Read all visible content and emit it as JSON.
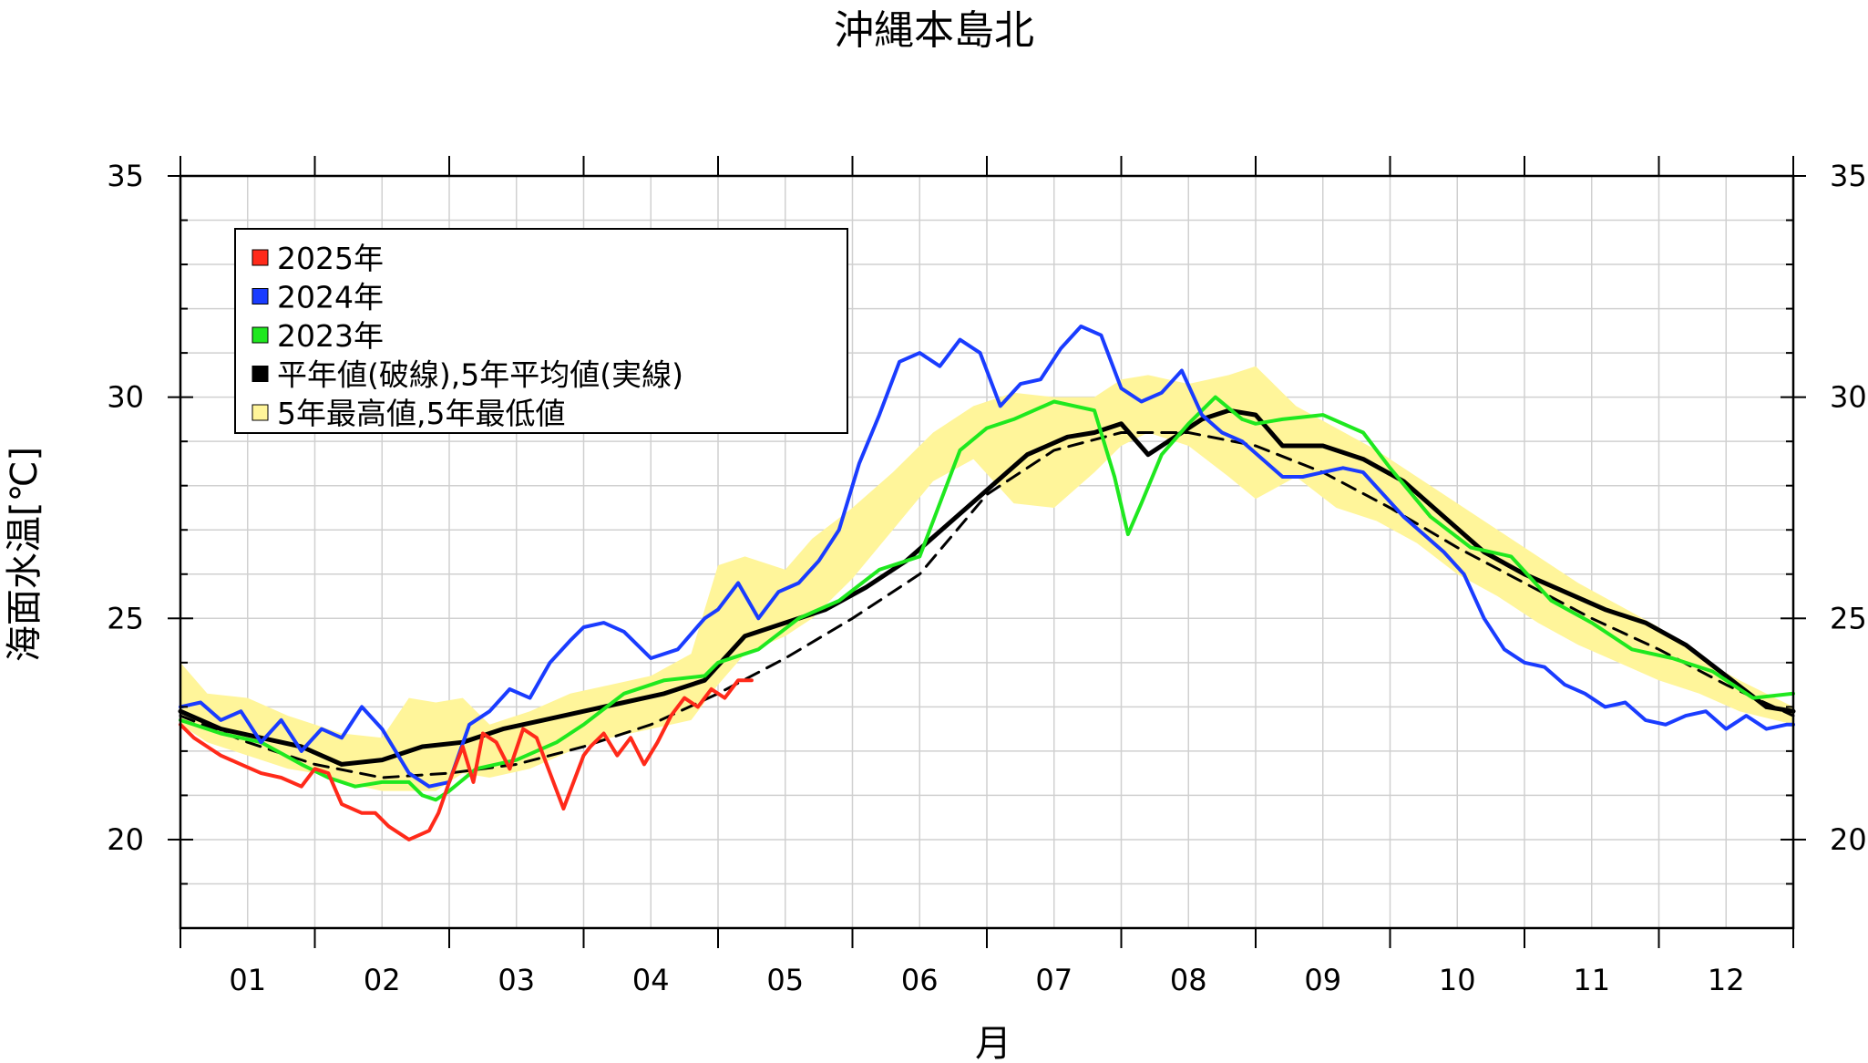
{
  "chart_data": {
    "type": "line",
    "title": "沖縄本島北",
    "xlabel": "月",
    "ylabel": "海面水温[℃]",
    "xlim": [
      0,
      12
    ],
    "ylim": [
      18,
      35
    ],
    "x_tick_labels": [
      "01",
      "02",
      "03",
      "04",
      "05",
      "06",
      "07",
      "08",
      "09",
      "10",
      "11",
      "12"
    ],
    "y_tick_labels": [
      "20",
      "25",
      "30",
      "35"
    ],
    "y_tick_values": [
      20,
      25,
      30,
      35
    ],
    "grid": true,
    "legend_position": "top-left",
    "legend": [
      {
        "label": "2025年",
        "color": "#ff2a1a"
      },
      {
        "label": "2024年",
        "color": "#1a3cff"
      },
      {
        "label": "2023年",
        "color": "#1fe81f"
      },
      {
        "label": "平年値(破線),5年平均値(実線)",
        "color": "#000000"
      },
      {
        "label": "5年最高値,5年最低値",
        "color": "#fff59a"
      }
    ],
    "band": {
      "name": "5年最高値,5年最低値",
      "x": [
        0.0,
        0.2,
        0.5,
        0.8,
        1.0,
        1.2,
        1.5,
        1.7,
        1.9,
        2.1,
        2.3,
        2.6,
        2.9,
        3.2,
        3.5,
        3.8,
        4.0,
        4.2,
        4.5,
        4.7,
        5.0,
        5.3,
        5.6,
        5.9,
        6.2,
        6.5,
        6.8,
        7.0,
        7.2,
        7.5,
        7.8,
        8.0,
        8.3,
        8.6,
        8.9,
        9.2,
        9.5,
        9.8,
        10.1,
        10.4,
        10.7,
        11.0,
        11.3,
        11.6,
        12.0
      ],
      "upper": [
        24.0,
        23.3,
        23.2,
        22.8,
        22.6,
        22.4,
        22.3,
        23.2,
        23.1,
        23.2,
        22.6,
        22.9,
        23.3,
        23.5,
        23.7,
        24.2,
        26.2,
        26.4,
        26.1,
        26.8,
        27.5,
        28.3,
        29.2,
        29.8,
        30.1,
        30.0,
        30.0,
        30.4,
        30.5,
        30.3,
        30.5,
        30.7,
        29.8,
        29.3,
        28.8,
        28.2,
        27.6,
        27.0,
        26.4,
        25.8,
        25.3,
        24.8,
        24.1,
        23.6,
        23.0
      ],
      "lower": [
        22.6,
        22.2,
        21.9,
        21.6,
        21.5,
        21.3,
        21.1,
        21.1,
        21.1,
        21.5,
        21.4,
        21.6,
        22.0,
        22.3,
        22.5,
        22.7,
        23.5,
        24.2,
        24.6,
        25.0,
        25.9,
        27.0,
        28.1,
        28.6,
        27.6,
        27.5,
        28.3,
        28.9,
        29.2,
        28.9,
        28.2,
        27.7,
        28.2,
        27.5,
        27.2,
        26.7,
        26.0,
        25.5,
        24.9,
        24.4,
        24.0,
        23.6,
        23.3,
        22.9,
        22.6
      ]
    },
    "series": [
      {
        "name": "2025年",
        "color": "#ff2a1a",
        "width": 4,
        "dashed": false,
        "x": [
          0.0,
          0.1,
          0.2,
          0.3,
          0.45,
          0.6,
          0.75,
          0.9,
          1.0,
          1.1,
          1.2,
          1.35,
          1.45,
          1.55,
          1.7,
          1.85,
          1.92,
          2.0,
          2.05,
          2.1,
          2.18,
          2.25,
          2.35,
          2.45,
          2.55,
          2.65,
          2.75,
          2.85,
          3.0,
          3.05,
          3.15,
          3.25,
          3.35,
          3.45,
          3.55,
          3.65,
          3.75,
          3.85,
          3.95,
          4.05,
          4.15,
          4.25
        ],
        "y": [
          22.6,
          22.3,
          22.1,
          21.9,
          21.7,
          21.5,
          21.4,
          21.2,
          21.6,
          21.5,
          20.8,
          20.6,
          20.6,
          20.3,
          20.0,
          20.2,
          20.6,
          21.3,
          21.7,
          22.1,
          21.3,
          22.4,
          22.2,
          21.6,
          22.5,
          22.3,
          21.5,
          20.7,
          21.9,
          22.1,
          22.4,
          21.9,
          22.3,
          21.7,
          22.2,
          22.8,
          23.2,
          23.0,
          23.4,
          23.2,
          23.6,
          23.6
        ]
      },
      {
        "name": "2024年",
        "color": "#1a3cff",
        "width": 4,
        "dashed": false,
        "x": [
          0.0,
          0.15,
          0.3,
          0.45,
          0.6,
          0.75,
          0.9,
          1.05,
          1.2,
          1.35,
          1.5,
          1.7,
          1.85,
          2.0,
          2.15,
          2.3,
          2.45,
          2.6,
          2.75,
          2.9,
          3.0,
          3.15,
          3.3,
          3.5,
          3.7,
          3.9,
          4.0,
          4.15,
          4.3,
          4.45,
          4.6,
          4.75,
          4.9,
          5.05,
          5.2,
          5.35,
          5.5,
          5.65,
          5.8,
          5.95,
          6.1,
          6.25,
          6.4,
          6.55,
          6.7,
          6.85,
          7.0,
          7.15,
          7.3,
          7.45,
          7.6,
          7.75,
          7.9,
          8.05,
          8.2,
          8.35,
          8.5,
          8.65,
          8.8,
          8.95,
          9.1,
          9.25,
          9.4,
          9.55,
          9.7,
          9.85,
          10.0,
          10.15,
          10.3,
          10.45,
          10.6,
          10.75,
          10.9,
          11.05,
          11.2,
          11.35,
          11.5,
          11.65,
          11.8,
          11.95,
          12.0
        ],
        "y": [
          23.0,
          23.1,
          22.7,
          22.9,
          22.2,
          22.7,
          22.0,
          22.5,
          22.3,
          23.0,
          22.5,
          21.5,
          21.2,
          21.3,
          22.6,
          22.9,
          23.4,
          23.2,
          24.0,
          24.5,
          24.8,
          24.9,
          24.7,
          24.1,
          24.3,
          25.0,
          25.2,
          25.8,
          25.0,
          25.6,
          25.8,
          26.3,
          27.0,
          28.5,
          29.6,
          30.8,
          31.0,
          30.7,
          31.3,
          31.0,
          29.8,
          30.3,
          30.4,
          31.1,
          31.6,
          31.4,
          30.2,
          29.9,
          30.1,
          30.6,
          29.6,
          29.2,
          29.0,
          28.6,
          28.2,
          28.2,
          28.3,
          28.4,
          28.3,
          27.8,
          27.3,
          26.9,
          26.5,
          26.0,
          25.0,
          24.3,
          24.0,
          23.9,
          23.5,
          23.3,
          23.0,
          23.1,
          22.7,
          22.6,
          22.8,
          22.9,
          22.5,
          22.8,
          22.5,
          22.6,
          22.6
        ]
      },
      {
        "name": "2023年",
        "color": "#1fe81f",
        "width": 4,
        "dashed": false,
        "x": [
          0.0,
          0.3,
          0.6,
          0.9,
          1.1,
          1.3,
          1.5,
          1.7,
          1.8,
          1.9,
          2.0,
          2.2,
          2.5,
          2.8,
          3.0,
          3.3,
          3.6,
          3.9,
          4.0,
          4.3,
          4.6,
          4.9,
          5.2,
          5.5,
          5.8,
          6.0,
          6.2,
          6.5,
          6.8,
          6.95,
          7.05,
          7.15,
          7.3,
          7.5,
          7.7,
          7.9,
          8.0,
          8.2,
          8.5,
          8.8,
          9.0,
          9.3,
          9.6,
          9.9,
          10.2,
          10.5,
          10.8,
          11.1,
          11.4,
          11.7,
          12.0
        ],
        "y": [
          22.7,
          22.4,
          22.2,
          21.7,
          21.4,
          21.2,
          21.3,
          21.3,
          21.0,
          20.9,
          21.1,
          21.6,
          21.8,
          22.2,
          22.6,
          23.3,
          23.6,
          23.7,
          24.0,
          24.3,
          25.0,
          25.4,
          26.1,
          26.4,
          28.8,
          29.3,
          29.5,
          29.9,
          29.7,
          28.2,
          26.9,
          27.6,
          28.7,
          29.4,
          30.0,
          29.5,
          29.4,
          29.5,
          29.6,
          29.2,
          28.4,
          27.3,
          26.6,
          26.4,
          25.4,
          24.9,
          24.3,
          24.1,
          23.8,
          23.2,
          23.3
        ]
      },
      {
        "name": "5年平均値",
        "color": "#000000",
        "width": 5,
        "dashed": false,
        "x": [
          0.0,
          0.3,
          0.6,
          0.9,
          1.2,
          1.5,
          1.8,
          2.1,
          2.4,
          2.7,
          3.0,
          3.3,
          3.6,
          3.9,
          4.2,
          4.5,
          4.8,
          5.1,
          5.4,
          5.7,
          6.0,
          6.3,
          6.6,
          6.8,
          7.0,
          7.2,
          7.4,
          7.6,
          7.8,
          8.0,
          8.2,
          8.5,
          8.8,
          9.1,
          9.4,
          9.7,
          10.0,
          10.3,
          10.6,
          10.9,
          11.2,
          11.5,
          11.8,
          12.0
        ],
        "y": [
          22.9,
          22.5,
          22.3,
          22.1,
          21.7,
          21.8,
          22.1,
          22.2,
          22.5,
          22.7,
          22.9,
          23.1,
          23.3,
          23.6,
          24.6,
          24.9,
          25.2,
          25.7,
          26.3,
          27.1,
          27.9,
          28.7,
          29.1,
          29.2,
          29.4,
          28.7,
          29.1,
          29.5,
          29.7,
          29.6,
          28.9,
          28.9,
          28.6,
          28.1,
          27.3,
          26.5,
          26.0,
          25.6,
          25.2,
          24.9,
          24.4,
          23.7,
          23.0,
          22.9
        ]
      },
      {
        "name": "平年値",
        "color": "#000000",
        "width": 3,
        "dashed": true,
        "x": [
          0.0,
          0.5,
          1.0,
          1.5,
          2.0,
          2.5,
          3.0,
          3.5,
          4.0,
          4.5,
          5.0,
          5.5,
          6.0,
          6.5,
          7.0,
          7.5,
          8.0,
          8.5,
          9.0,
          9.5,
          10.0,
          10.5,
          11.0,
          11.5,
          12.0
        ],
        "y": [
          22.8,
          22.2,
          21.7,
          21.4,
          21.5,
          21.7,
          22.1,
          22.6,
          23.3,
          24.1,
          25.0,
          26.0,
          27.8,
          28.8,
          29.2,
          29.2,
          28.9,
          28.3,
          27.5,
          26.6,
          25.8,
          25.0,
          24.3,
          23.5,
          22.8
        ]
      }
    ]
  }
}
